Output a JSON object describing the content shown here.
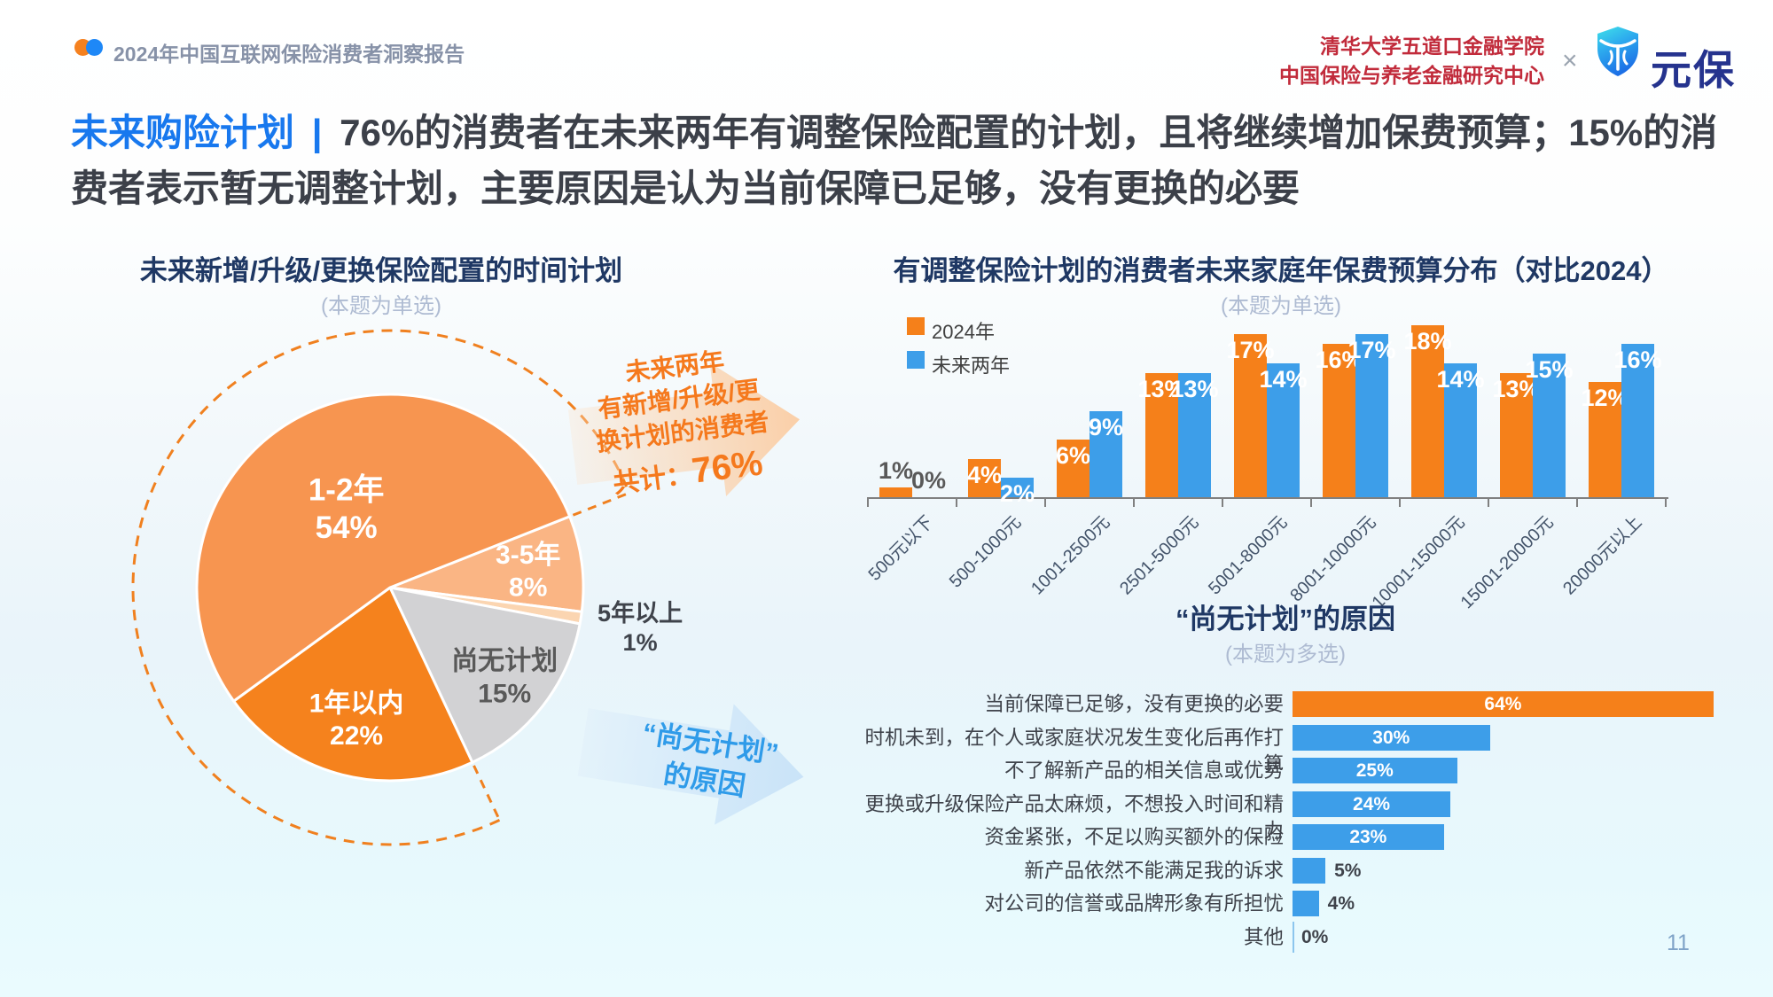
{
  "header": {
    "report_title": "2024年中国互联网保险消费者洞察报告",
    "institution_line1": "清华大学五道口金融学院",
    "institution_line2": "中国保险与养老金融研究中心",
    "cross_symbol": "×",
    "brand_name": "元保"
  },
  "headline": {
    "lead": "未来购险计划",
    "separator": "|",
    "body": "76%的消费者在未来两年有调整保险配置的计划，且将继续增加保费预算；15%的消费者表示暂无调整计划，主要原因是认为当前保障已足够，没有更换的必要"
  },
  "pie_section": {
    "title": "未来新增/升级/更换保险配置的时间计划",
    "note": "(本题为单选)",
    "callout_plan": {
      "lines": [
        "未来两年",
        "有新增/升级/更",
        "换计划的消费者"
      ],
      "total_label": "共计：",
      "total_value": "76%"
    },
    "callout_noplan": {
      "line1": "“尚无计划”",
      "line2": "的原因"
    }
  },
  "budget_section": {
    "title": "有调整保险计划的消费者未来家庭年保费预算分布（对比2024）",
    "note": "(本题为单选)"
  },
  "reasons_section": {
    "title": "“尚无计划”的原因",
    "note": "(本题为多选)"
  },
  "colors": {
    "orange": "#F5801A",
    "blue": "#3D9EE9",
    "dash_arc": "#F0801F",
    "navy_title": "#1F3864",
    "crimson": "#C12B3B"
  },
  "page_number": "11",
  "chart_data": [
    {
      "type": "pie",
      "title": "未来新增/升级/更换保险配置的时间计划",
      "note": "(本题为单选)",
      "start_angle": -21.6,
      "dash_arc_start_pct": 24,
      "dash_arc_label": "未来两年有新增/升级/更换计划的消费者共计：76%",
      "slices": [
        {
          "label": "3-5年",
          "value": 8,
          "color": "#FAB584",
          "text_color": "#FFFFFF",
          "label_r": 0.72,
          "outside": false,
          "big": false
        },
        {
          "label": "5年以上",
          "value": 1,
          "color": "#FBD5B1",
          "text_color": "#3F434B",
          "label_r": 1.31,
          "outside": true,
          "big": false
        },
        {
          "label": "尚无计划",
          "value": 15,
          "color": "#D2D2D4",
          "text_color": "#595959",
          "label_r": 0.75,
          "outside": false,
          "big": false
        },
        {
          "label": "1年以内",
          "value": 22,
          "color": "#F5821D",
          "text_color": "#FFFFFF",
          "label_r": 0.7,
          "outside": false,
          "big": false
        },
        {
          "label": "1-2年",
          "value": 54,
          "color": "#F79550",
          "text_color": "#FFFFFF",
          "label_r": 0.47,
          "outside": false,
          "big": true
        }
      ]
    },
    {
      "type": "bar",
      "title": "有调整保险计划的消费者未来家庭年保费预算分布（对比2024）",
      "note": "(本题为单选)",
      "categories": [
        "500元以下",
        "500-1000元",
        "1001-2500元",
        "2501-5000元",
        "5001-8000元",
        "8001-10000元",
        "10001-15000元",
        "15001-20000元",
        "20000元以上"
      ],
      "series": [
        {
          "name": "2024年",
          "color": "#F5801A",
          "values": [
            1,
            4,
            6,
            13,
            17,
            16,
            18,
            13,
            12
          ]
        },
        {
          "name": "未来两年",
          "color": "#3D9EE9",
          "values": [
            0,
            2,
            9,
            13,
            14,
            17,
            14,
            15,
            16
          ]
        }
      ],
      "value_suffix": "%",
      "ylim": [
        0,
        18
      ],
      "legend_position": "top-left",
      "grid": false
    },
    {
      "type": "bar-horizontal",
      "title": "“尚无计划”的原因",
      "note": "(本题为多选)",
      "categories": [
        "当前保障已足够，没有更换的必要",
        "时机未到，在个人或家庭状况发生变化后再作打算",
        "不了解新产品的相关信息或优势",
        "更换或升级保险产品太麻烦，不想投入时间和精力",
        "资金紧张，不足以购买额外的保险",
        "新产品依然不能满足我的诉求",
        "对公司的信誉或品牌形象有所担忧",
        "其他"
      ],
      "values": [
        64,
        30,
        25,
        24,
        23,
        5,
        4,
        0
      ],
      "value_suffix": "%",
      "highlight_color": "#F5801A",
      "bar_color": "#3D9EE9",
      "xlim": [
        0,
        70
      ],
      "grid": false
    }
  ]
}
